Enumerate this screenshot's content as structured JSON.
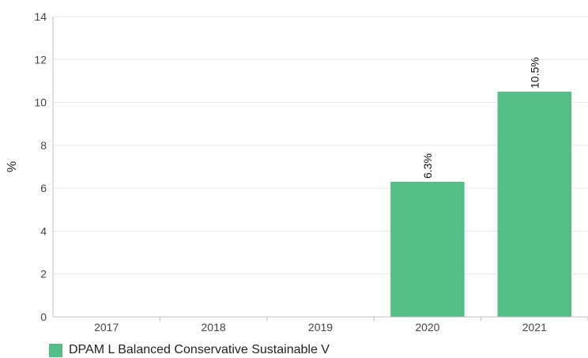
{
  "chart_data": {
    "type": "bar",
    "categories": [
      "2017",
      "2018",
      "2019",
      "2020",
      "2021"
    ],
    "series": [
      {
        "name": "DPAM L Balanced Conservative Sustainable V",
        "values": [
          null,
          null,
          null,
          6.3,
          10.5
        ],
        "data_labels": [
          "",
          "",
          "",
          "6.3%",
          "10.5%"
        ],
        "color": "#52bd84"
      }
    ],
    "title": "",
    "xlabel": "",
    "ylabel": "%",
    "ylim": [
      0,
      14
    ],
    "yticks": [
      0,
      2,
      4,
      6,
      8,
      10,
      12,
      14
    ],
    "grid": true,
    "legend_position": "bottom-left"
  }
}
